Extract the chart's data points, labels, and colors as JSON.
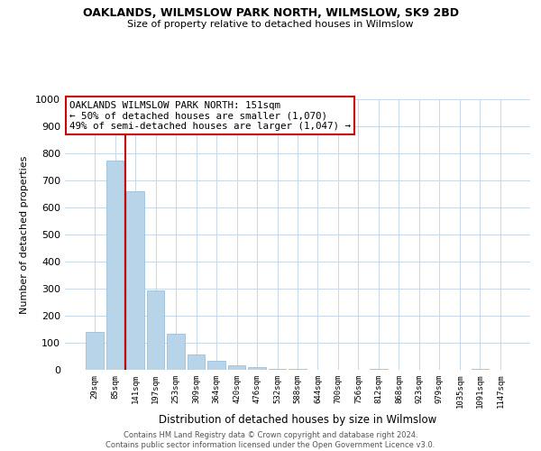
{
  "title": "OAKLANDS, WILMSLOW PARK NORTH, WILMSLOW, SK9 2BD",
  "subtitle": "Size of property relative to detached houses in Wilmslow",
  "xlabel": "Distribution of detached houses by size in Wilmslow",
  "ylabel": "Number of detached properties",
  "bar_color": "#b8d4e8",
  "bar_edge_color": "#90b8d8",
  "background_color": "#ffffff",
  "grid_color": "#c8d8e8",
  "annotation_box_edge_color": "#cc0000",
  "vline_color": "#cc0000",
  "vline_x_index": 2,
  "categories": [
    "29sqm",
    "85sqm",
    "141sqm",
    "197sqm",
    "253sqm",
    "309sqm",
    "364sqm",
    "420sqm",
    "476sqm",
    "532sqm",
    "588sqm",
    "644sqm",
    "700sqm",
    "756sqm",
    "812sqm",
    "868sqm",
    "923sqm",
    "979sqm",
    "1035sqm",
    "1091sqm",
    "1147sqm"
  ],
  "values": [
    140,
    775,
    660,
    295,
    135,
    58,
    32,
    18,
    10,
    3,
    5,
    1,
    0,
    0,
    3,
    0,
    0,
    0,
    0,
    5,
    0
  ],
  "ylim": [
    0,
    1000
  ],
  "yticks": [
    0,
    100,
    200,
    300,
    400,
    500,
    600,
    700,
    800,
    900,
    1000
  ],
  "annotation_title": "OAKLANDS WILMSLOW PARK NORTH: 151sqm",
  "annotation_line1": "← 50% of detached houses are smaller (1,070)",
  "annotation_line2": "49% of semi-detached houses are larger (1,047) →",
  "footer_line1": "Contains HM Land Registry data © Crown copyright and database right 2024.",
  "footer_line2": "Contains public sector information licensed under the Open Government Licence v3.0."
}
